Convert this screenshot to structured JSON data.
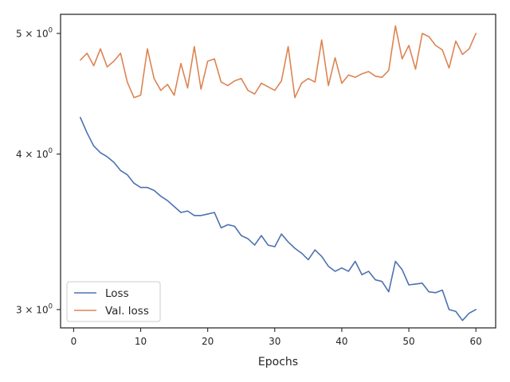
{
  "chart_data": {
    "type": "line",
    "title": "",
    "xlabel": "Epochs",
    "ylabel": "",
    "yscale": "log",
    "xlim": [
      -1.95,
      62.95
    ],
    "ylim": [
      2.9,
      5.18
    ],
    "xticks": [
      0,
      10,
      20,
      30,
      40,
      50,
      60
    ],
    "xtick_labels": [
      "0",
      "10",
      "20",
      "30",
      "40",
      "50",
      "60"
    ],
    "yticks": [
      3,
      4,
      5
    ],
    "ytick_labels": [
      {
        "base": "3 × 10",
        "exp": "0"
      },
      {
        "base": "4 × 10",
        "exp": "0"
      },
      {
        "base": "5 × 10",
        "exp": "0"
      }
    ],
    "grid": false,
    "legend_position": "lower-left",
    "x": [
      1,
      2,
      3,
      4,
      5,
      6,
      7,
      8,
      9,
      10,
      11,
      12,
      13,
      14,
      15,
      16,
      17,
      18,
      19,
      20,
      21,
      22,
      23,
      24,
      25,
      26,
      27,
      28,
      29,
      30,
      31,
      32,
      33,
      34,
      35,
      36,
      37,
      38,
      39,
      40,
      41,
      42,
      43,
      44,
      45,
      46,
      47,
      48,
      49,
      50,
      51,
      52,
      53,
      54,
      55,
      56,
      57,
      58,
      59,
      60
    ],
    "series": [
      {
        "name": "Loss",
        "color": "#4c72b0",
        "values": [
          4.28,
          4.16,
          4.06,
          4.01,
          3.98,
          3.94,
          3.88,
          3.85,
          3.79,
          3.76,
          3.76,
          3.74,
          3.7,
          3.67,
          3.63,
          3.59,
          3.6,
          3.57,
          3.57,
          3.58,
          3.59,
          3.49,
          3.51,
          3.5,
          3.44,
          3.42,
          3.38,
          3.44,
          3.38,
          3.37,
          3.45,
          3.4,
          3.36,
          3.33,
          3.29,
          3.35,
          3.31,
          3.25,
          3.22,
          3.24,
          3.22,
          3.28,
          3.2,
          3.22,
          3.17,
          3.16,
          3.1,
          3.28,
          3.23,
          3.14,
          3.145,
          3.15,
          3.1,
          3.095,
          3.11,
          3.0,
          2.99,
          2.94,
          2.98,
          3.0
        ]
      },
      {
        "name": "Val. loss",
        "color": "#dd8452",
        "values": [
          4.76,
          4.82,
          4.71,
          4.86,
          4.7,
          4.75,
          4.82,
          4.57,
          4.44,
          4.46,
          4.86,
          4.6,
          4.5,
          4.55,
          4.46,
          4.73,
          4.52,
          4.88,
          4.51,
          4.75,
          4.77,
          4.57,
          4.54,
          4.58,
          4.6,
          4.5,
          4.47,
          4.56,
          4.53,
          4.5,
          4.58,
          4.88,
          4.44,
          4.56,
          4.6,
          4.57,
          4.94,
          4.54,
          4.78,
          4.56,
          4.63,
          4.61,
          4.64,
          4.66,
          4.62,
          4.61,
          4.67,
          5.07,
          4.77,
          4.89,
          4.68,
          5.0,
          4.97,
          4.89,
          4.85,
          4.69,
          4.93,
          4.81,
          4.86,
          5.0
        ]
      }
    ]
  }
}
